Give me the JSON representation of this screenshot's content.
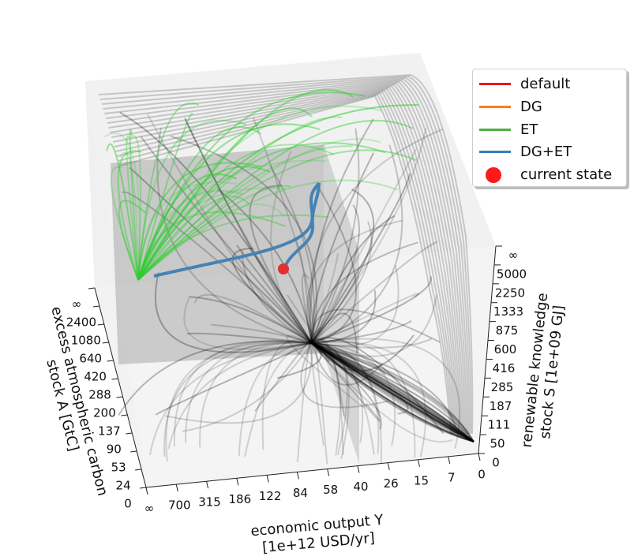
{
  "chart_data": {
    "type": "3d-phase-portrait",
    "axes": {
      "x": {
        "label_line1": "economic output Y",
        "label_line2": "[1e+12 USD/yr]",
        "ticks": [
          "∞",
          "700",
          "315",
          "186",
          "122",
          "84",
          "58",
          "40",
          "26",
          "15",
          "7",
          "0"
        ]
      },
      "y": {
        "label_line1": "renewable knowledge",
        "label_line2": "stock S [1e+09 GJ]",
        "ticks": [
          "0",
          "50",
          "111",
          "187",
          "285",
          "416",
          "600",
          "875",
          "1333",
          "2250",
          "5000",
          "∞"
        ]
      },
      "z": {
        "label_line1": "excess atmospheric carbon",
        "label_line2": "stock A [GtC]",
        "ticks": [
          "0",
          "24",
          "53",
          "90",
          "137",
          "200",
          "288",
          "420",
          "640",
          "1080",
          "2400",
          "∞"
        ]
      }
    },
    "legend": [
      {
        "label": "default",
        "color": "#e41a1c",
        "kind": "line"
      },
      {
        "label": "DG",
        "color": "#ff7f00",
        "kind": "line"
      },
      {
        "label": "ET",
        "color": "#4daf4a",
        "kind": "line"
      },
      {
        "label": "DG+ET",
        "color": "#377eb8",
        "kind": "line"
      },
      {
        "label": "current state",
        "color": "#e41a1c",
        "kind": "marker"
      }
    ],
    "colors": {
      "flow_default": "#000000",
      "flow_et": "#2ecc2e",
      "trajectory": "#4682b4",
      "current_state": "#e03030",
      "planes": "#9a9a9a"
    }
  }
}
